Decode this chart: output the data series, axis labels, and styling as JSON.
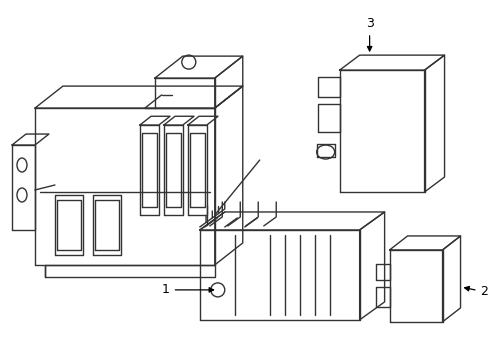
{
  "background_color": "#ffffff",
  "line_color": "#333333",
  "line_width": 1.0,
  "figsize": [
    4.89,
    3.6
  ],
  "dpi": 100
}
